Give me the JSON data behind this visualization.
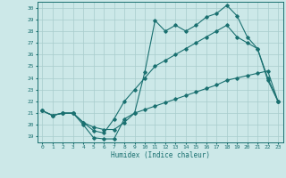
{
  "xlabel": "Humidex (Indice chaleur)",
  "background_color": "#cce8e8",
  "grid_color": "#a8cccc",
  "line_color": "#1a7070",
  "xlim": [
    -0.5,
    23.5
  ],
  "ylim": [
    18.5,
    30.5
  ],
  "yticks": [
    19,
    20,
    21,
    22,
    23,
    24,
    25,
    26,
    27,
    28,
    29,
    30
  ],
  "xticks": [
    0,
    1,
    2,
    3,
    4,
    5,
    6,
    7,
    8,
    9,
    10,
    11,
    12,
    13,
    14,
    15,
    16,
    17,
    18,
    19,
    20,
    21,
    22,
    23
  ],
  "line1_x": [
    0,
    1,
    2,
    3,
    4,
    5,
    6,
    7,
    8,
    9,
    10,
    11,
    12,
    13,
    14,
    15,
    16,
    17,
    18,
    19,
    20,
    21,
    22,
    23
  ],
  "line1_y": [
    21.2,
    20.8,
    21.0,
    21.0,
    20.0,
    18.9,
    18.8,
    18.8,
    20.5,
    21.0,
    24.5,
    28.9,
    28.0,
    28.5,
    28.0,
    28.5,
    29.2,
    29.5,
    30.2,
    29.3,
    27.5,
    26.5,
    23.8,
    22.0
  ],
  "line2_x": [
    0,
    1,
    2,
    3,
    4,
    5,
    6,
    7,
    8,
    9,
    10,
    11,
    12,
    13,
    14,
    15,
    16,
    17,
    18,
    19,
    20,
    21,
    22,
    23
  ],
  "line2_y": [
    21.2,
    20.8,
    21.0,
    21.0,
    20.2,
    19.5,
    19.3,
    20.5,
    22.0,
    23.0,
    24.0,
    25.0,
    25.5,
    26.0,
    26.5,
    27.0,
    27.5,
    28.0,
    28.5,
    27.5,
    27.0,
    26.5,
    24.0,
    22.0
  ],
  "line3_x": [
    0,
    1,
    2,
    3,
    4,
    5,
    6,
    7,
    8,
    9,
    10,
    11,
    12,
    13,
    14,
    15,
    16,
    17,
    18,
    19,
    20,
    21,
    22,
    23
  ],
  "line3_y": [
    21.2,
    20.8,
    21.0,
    21.0,
    20.2,
    19.8,
    19.6,
    19.6,
    20.2,
    21.0,
    21.3,
    21.6,
    21.9,
    22.2,
    22.5,
    22.8,
    23.1,
    23.4,
    23.8,
    24.0,
    24.2,
    24.4,
    24.6,
    22.0
  ]
}
